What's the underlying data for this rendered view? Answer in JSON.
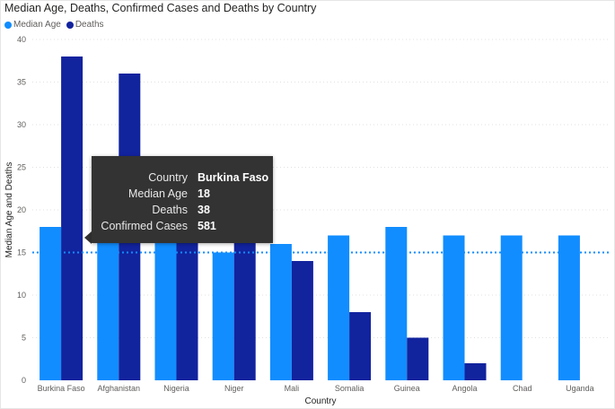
{
  "colors": {
    "median_age": "#118dff",
    "deaths": "#12239e",
    "reference_line": "#118dff"
  },
  "chart_data": {
    "type": "bar",
    "title": "Median Age, Deaths, Confirmed Cases and Deaths by Country",
    "xlabel": "Country",
    "ylabel": "Median Age and Deaths",
    "ylim": [
      0,
      40
    ],
    "yticks": [
      0,
      5,
      10,
      15,
      20,
      25,
      30,
      35,
      40
    ],
    "categories": [
      "Burkina Faso",
      "Afghanistan",
      "Nigeria",
      "Niger",
      "Mali",
      "Somalia",
      "Guinea",
      "Angola",
      "Chad",
      "Uganda"
    ],
    "series": [
      {
        "name": "Median Age",
        "values": [
          18,
          18,
          18,
          15,
          16,
          17,
          18,
          17,
          17,
          17
        ]
      },
      {
        "name": "Deaths",
        "values": [
          38,
          36,
          18,
          18,
          14,
          8,
          5,
          2,
          0,
          0
        ]
      }
    ],
    "reference_line": {
      "value": 15,
      "style": "dotted"
    },
    "legend": "top-left",
    "grid": true
  },
  "tooltip": {
    "rows": [
      {
        "label": "Country",
        "value": "Burkina Faso"
      },
      {
        "label": "Median Age",
        "value": "18"
      },
      {
        "label": "Deaths",
        "value": "38"
      },
      {
        "label": "Confirmed Cases",
        "value": "581"
      }
    ]
  }
}
